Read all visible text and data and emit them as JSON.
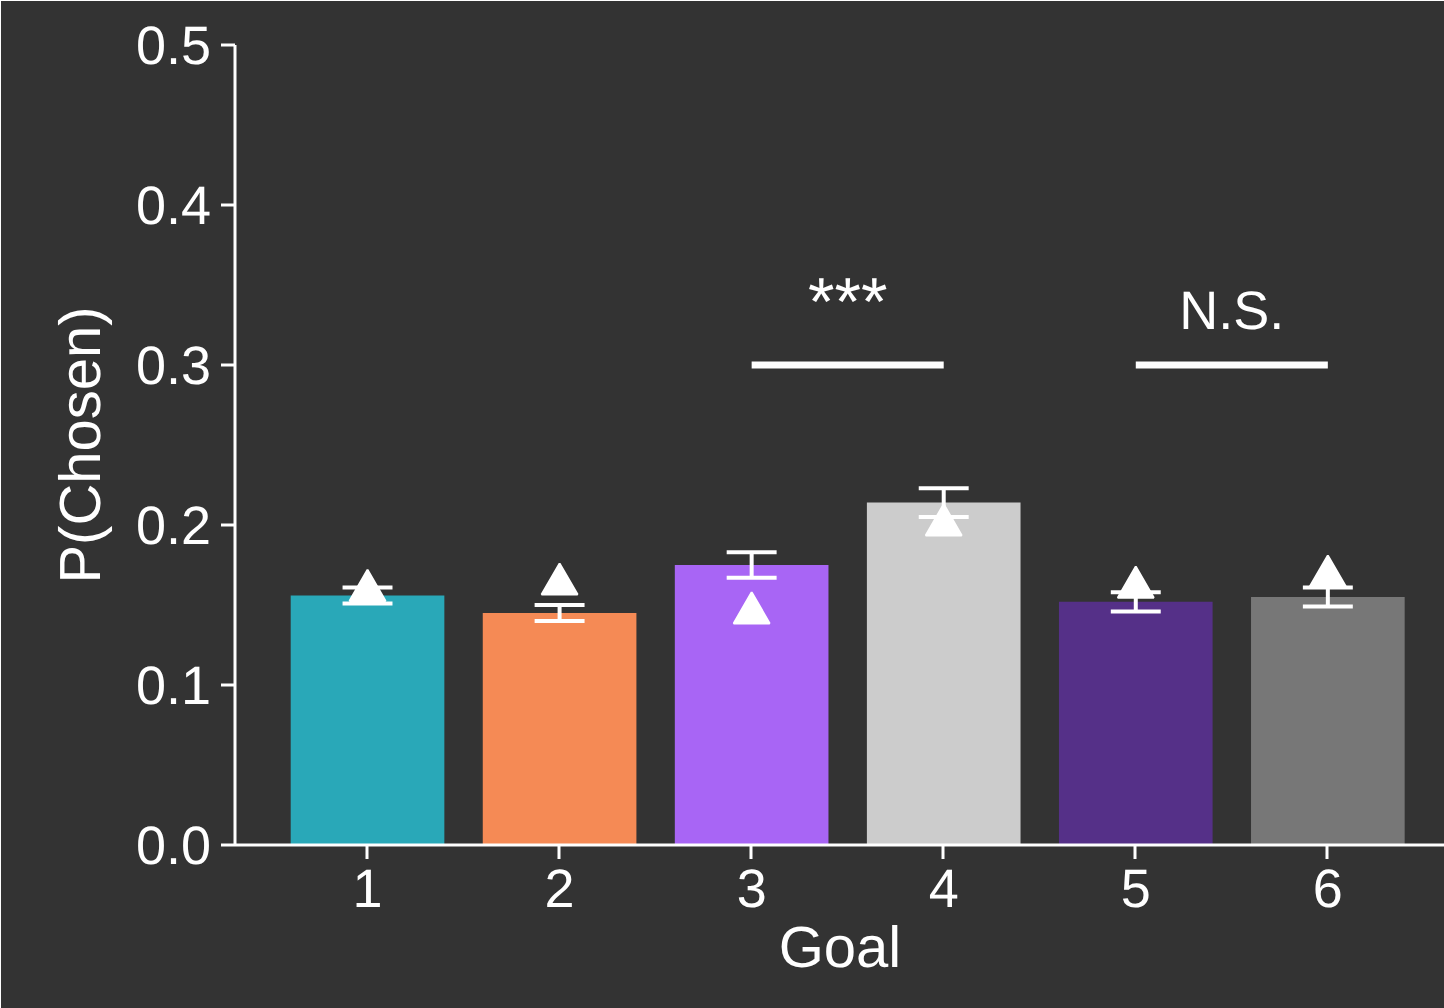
{
  "chart_data": {
    "type": "bar",
    "xlabel": "Goal",
    "ylabel": "P(Chosen)",
    "categories": [
      "1",
      "2",
      "3",
      "4",
      "5",
      "6"
    ],
    "series": [
      {
        "colors": [
          "#29a8b8",
          "#f58a55",
          "#a865f5",
          "#cccccc",
          "#553088",
          "#777777"
        ],
        "values": [
          0.156,
          0.145,
          0.175,
          0.214,
          0.152,
          0.155
        ],
        "errors": [
          0.005,
          0.005,
          0.008,
          0.009,
          0.006,
          0.006
        ]
      },
      {
        "type": "scatter",
        "x": [
          "1",
          "2",
          "3",
          "4",
          "5",
          "6"
        ],
        "color": "#ffffff",
        "marker": "triangle",
        "values": [
          0.159,
          0.163,
          0.145,
          0.2,
          0.161,
          0.168
        ]
      }
    ],
    "annotations": [
      "***",
      "N.S."
    ],
    "ylim": [
      0,
      0.5
    ],
    "yticks": [
      {
        "value": 0,
        "label": "0.0"
      },
      0.1,
      0.2,
      0.3,
      0.4,
      0.5
    ],
    "grid": false
  }
}
